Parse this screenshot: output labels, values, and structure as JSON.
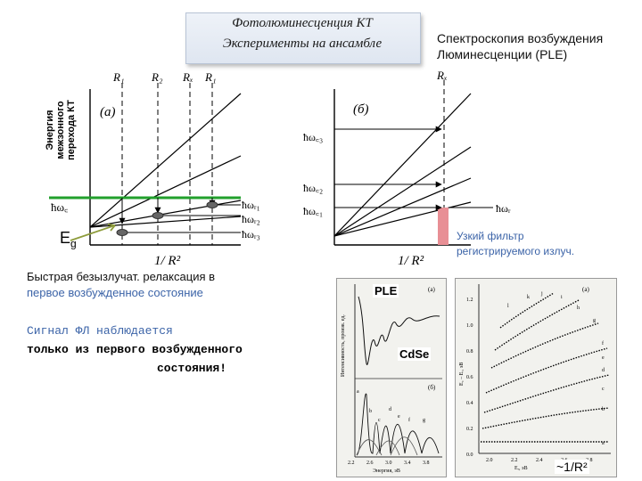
{
  "header": {
    "title_line1": "Фотолюминесценция КТ",
    "title_line2": "Эксперименты на ансамбле",
    "ple_title_line1": "Спектроскопия возбуждения",
    "ple_title_line2": "Люминесценции (PLE)"
  },
  "panel_a": {
    "label": "(а)",
    "y_axis_label_line1": "Энергия",
    "y_axis_label_line2": "межзонного",
    "y_axis_label_line3": "перехода КТ",
    "x_axis_label": "1/ R²",
    "r_labels": [
      "R₁",
      "R₂",
      "Rₓ",
      "R₁"
    ],
    "left_level_label": "ħω꜀",
    "right_levels": [
      "ħωᵣ₁",
      "ħωᵣ₂",
      "ħωᵣ₃"
    ],
    "eg_label": "E",
    "eg_sub": "g"
  },
  "panel_b": {
    "label": "(б)",
    "x_axis_label": "1/ R²",
    "r_label": "Rₓ",
    "left_levels": [
      "ħω꜀₃",
      "ħω꜀₂",
      "ħω꜀₁"
    ],
    "right_level": "ħωᵣ",
    "filter_label_line1": "Узкий фильтр",
    "filter_label_line2": "регистрируемого излуч."
  },
  "notes": {
    "relax_line1": "Быстрая безызлучат. релаксация в",
    "relax_line2": "первое возбужденное состояние",
    "signal_line1": "Сигнал ФЛ наблюдается",
    "signal_line2": "только из первого возбужденного",
    "signal_line3": "состояния!"
  },
  "spectra_photo": {
    "ple_tag": "PLE",
    "material_tag": "CdSe",
    "top_label": "(а)",
    "bottom_label": "(б)",
    "y_axis_label": "Интенсивность, произв. ед.",
    "x_axis_label": "Энергия, эВ",
    "x_ticks": [
      "2.2",
      "2.6",
      "3.0",
      "3.4",
      "3.8"
    ],
    "peak_labels": [
      "a",
      "b",
      "c",
      "d",
      "e",
      "f",
      "g"
    ]
  },
  "levels_photo": {
    "label": "(а)",
    "y_axis_label": "E꜀ – Eᵣ, эВ",
    "x_axis_label": "Eᵣ, эВ",
    "y_ticks": [
      "0.0",
      "0.2",
      "0.4",
      "0.6",
      "0.8",
      "1.0",
      "1.2"
    ],
    "x_ticks": [
      "2.0",
      "2.2",
      "2.4",
      "2.6",
      "2.8"
    ],
    "series_labels": [
      "a",
      "b",
      "c",
      "d",
      "e",
      "f",
      "g",
      "h",
      "i",
      "j",
      "k",
      "l"
    ],
    "caption": "~1/R²"
  },
  "colors": {
    "green_line": "#22a02c",
    "filter_bar": "#e88f95",
    "arrow_olive": "#8e9c3c",
    "note_blue": "#3c64a8"
  }
}
